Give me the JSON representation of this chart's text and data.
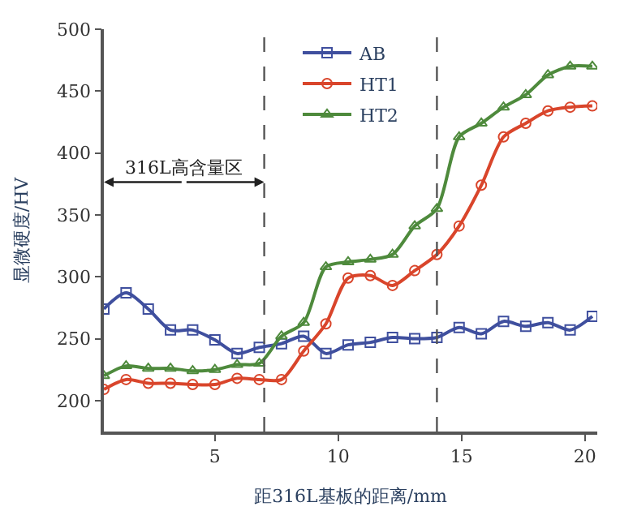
{
  "chart_data": {
    "type": "line",
    "xlabel": "距316L基板的距离/mm",
    "ylabel": "显微硬度/HV",
    "x": [
      0.5,
      1.4,
      2.3,
      3.2,
      4.1,
      5.0,
      5.9,
      6.8,
      7.7,
      8.6,
      9.5,
      10.4,
      11.3,
      12.2,
      13.1,
      14.0,
      14.9,
      15.8,
      16.7,
      17.6,
      18.5,
      19.4,
      20.3
    ],
    "series": [
      {
        "name": "AB",
        "color": "#3f4f9e",
        "marker": "square",
        "values": [
          274,
          287,
          274,
          257,
          257,
          249,
          238,
          243,
          246,
          252,
          238,
          245,
          247,
          251,
          250,
          251,
          259,
          254,
          264,
          260,
          263,
          257,
          268
        ]
      },
      {
        "name": "HT1",
        "color": "#d9452b",
        "marker": "circle",
        "values": [
          209,
          217,
          214,
          214,
          213,
          213,
          218,
          217,
          217,
          240,
          262,
          299,
          301,
          293,
          305,
          318,
          341,
          374,
          413,
          424,
          434,
          437,
          438
        ]
      },
      {
        "name": "HT2",
        "color": "#4e8a3c",
        "marker": "triangle",
        "values": [
          220,
          228,
          226,
          226,
          224,
          225,
          229,
          230,
          252,
          263,
          308,
          312,
          314,
          318,
          341,
          355,
          413,
          424,
          437,
          447,
          463,
          470,
          470
        ]
      }
    ],
    "xlim": [
      0.5,
      20.5
    ],
    "xticks": [
      5,
      10,
      15,
      20
    ],
    "ylim": [
      175,
      500
    ],
    "yticks": [
      200,
      250,
      300,
      350,
      400,
      450,
      500
    ],
    "ref_lines": [
      {
        "axis": "x",
        "value": 7,
        "line_style": "dashed",
        "color": "#555555"
      },
      {
        "axis": "x",
        "value": 14,
        "line_style": "dashed",
        "color": "#555555"
      }
    ],
    "annotations": [
      "316L高含量区"
    ],
    "legend": "top",
    "line_style": "solid"
  }
}
